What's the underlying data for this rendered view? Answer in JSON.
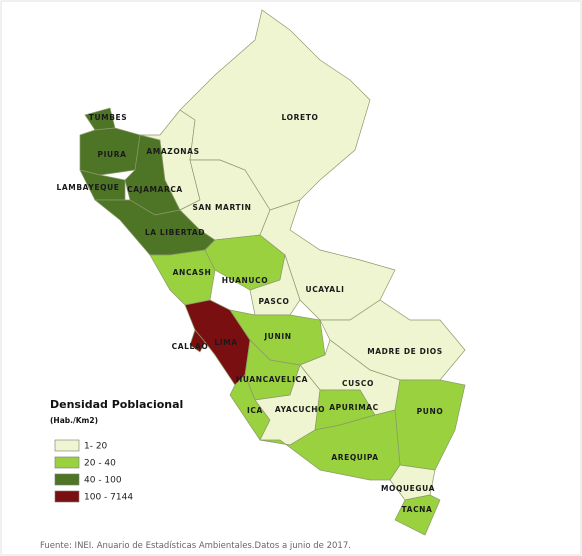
{
  "legend": {
    "title": "Densidad Poblacional",
    "subtitle": "(Hab./Km2)",
    "classes": [
      {
        "label": "1- 20",
        "color": "#eff5d0"
      },
      {
        "label": "20 - 40",
        "color": "#99d13f"
      },
      {
        "label": "40 - 100",
        "color": "#4e7526"
      },
      {
        "label": "100 - 7144",
        "color": "#7a0f12"
      }
    ]
  },
  "regions": [
    {
      "name": "TUMBES",
      "class": 2
    },
    {
      "name": "PIURA",
      "class": 2
    },
    {
      "name": "LAMBAYEQUE",
      "class": 2
    },
    {
      "name": "CAJAMARCA",
      "class": 2
    },
    {
      "name": "LA LIBERTAD",
      "class": 2
    },
    {
      "name": "AMAZONAS",
      "class": 0
    },
    {
      "name": "LORETO",
      "class": 0
    },
    {
      "name": "SAN MARTIN",
      "class": 0
    },
    {
      "name": "ANCASH",
      "class": 1
    },
    {
      "name": "HUANUCO",
      "class": 1
    },
    {
      "name": "UCAYALI",
      "class": 0
    },
    {
      "name": "PASCO",
      "class": 0
    },
    {
      "name": "LIMA",
      "class": 3
    },
    {
      "name": "CALLAO",
      "class": 3
    },
    {
      "name": "JUNIN",
      "class": 1
    },
    {
      "name": "MADRE DE DIOS",
      "class": 0
    },
    {
      "name": "HUANCAVELICA",
      "class": 1
    },
    {
      "name": "CUSCO",
      "class": 0
    },
    {
      "name": "ICA",
      "class": 1
    },
    {
      "name": "AYACUCHO",
      "class": 0
    },
    {
      "name": "APURIMAC",
      "class": 1
    },
    {
      "name": "PUNO",
      "class": 1
    },
    {
      "name": "AREQUIPA",
      "class": 1
    },
    {
      "name": "MOQUEGUA",
      "class": 0
    },
    {
      "name": "TACNA",
      "class": 1
    }
  ],
  "source": "Fuente: INEI. Anuario de Estadísticas Ambientales.Datos a junio de 2017."
}
